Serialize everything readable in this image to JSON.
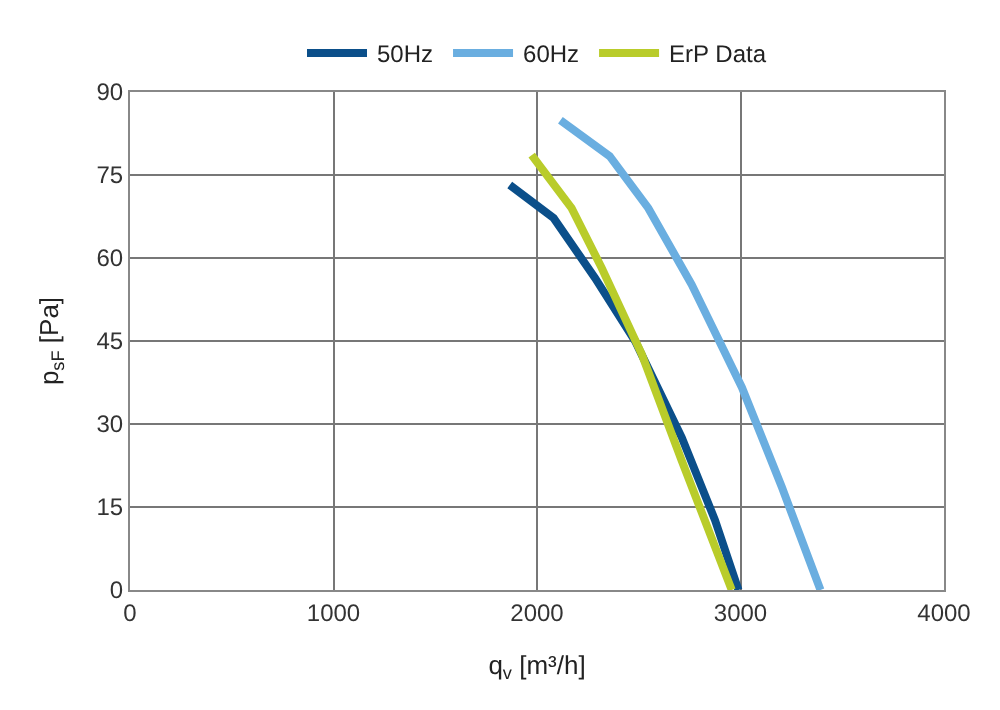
{
  "chart_data": {
    "type": "line",
    "xlabel": "q$_{v}$ [m³/h]",
    "ylabel": "p$_{sF}$ [Pa]",
    "xlim": [
      0,
      4000
    ],
    "xticks": [
      0,
      1000,
      2000,
      3000,
      4000
    ],
    "ylim": [
      0,
      90
    ],
    "yticks": [
      0,
      15,
      30,
      45,
      60,
      75,
      90
    ],
    "grid": true,
    "legend": "top",
    "line_style": "solid",
    "series": [
      {
        "name": "50Hz",
        "color": "#0b4f8a",
        "x": [
          1866,
          2082,
          2285,
          2482,
          2711,
          2875,
          2990
        ],
        "values": [
          73.2,
          67.2,
          56.4,
          45,
          27.6,
          12.6,
          0
        ]
      },
      {
        "name": "60Hz",
        "color": "#6aaee0",
        "x": [
          2115,
          2357,
          2547,
          2760,
          3007,
          3203,
          3393
        ],
        "values": [
          84.9,
          78.4,
          69,
          55.2,
          36.6,
          18.6,
          0
        ]
      },
      {
        "name": "ErP Data",
        "color": "#b9cc2a",
        "x": [
          1974,
          2170,
          2318,
          2515,
          2711,
          2957
        ],
        "values": [
          78.6,
          69,
          58.2,
          42.6,
          23.4,
          0
        ]
      }
    ]
  }
}
